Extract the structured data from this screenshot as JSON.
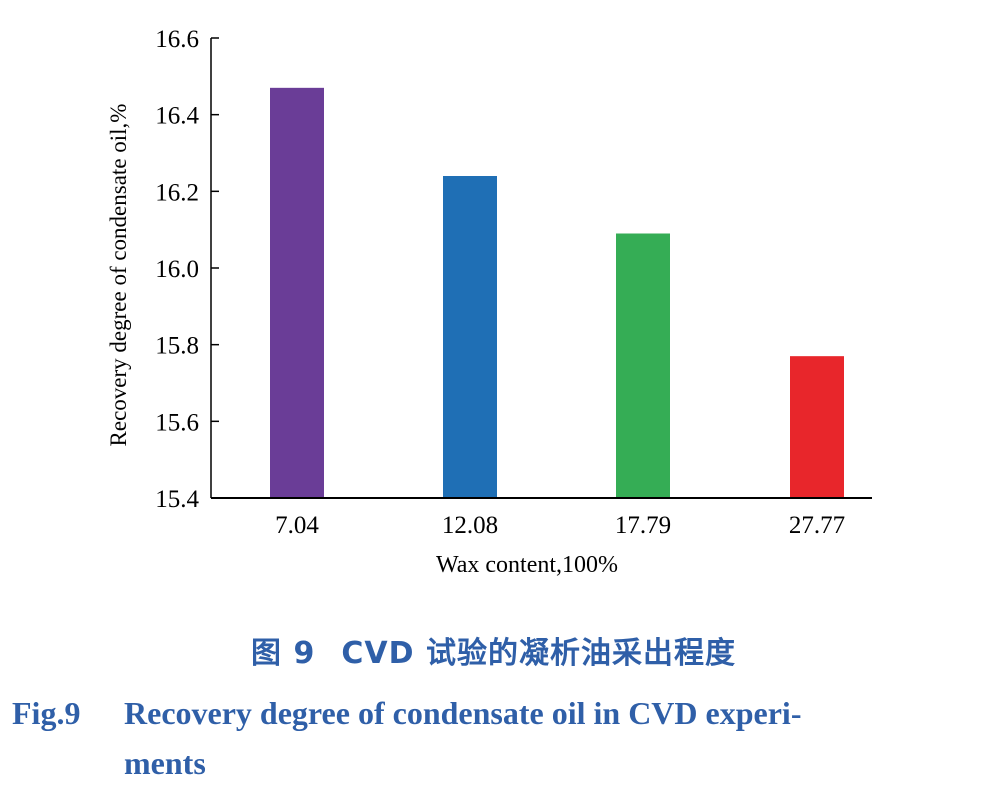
{
  "chart_data": {
    "type": "bar",
    "categories": [
      "7.04",
      "12.08",
      "17.79",
      "27.77"
    ],
    "values": [
      16.47,
      16.24,
      16.09,
      15.77
    ],
    "colors": [
      "#6a3d97",
      "#1f6fb5",
      "#35ad55",
      "#e8262b"
    ],
    "xlabel": "Wax content,100%",
    "ylabel": "Recovery degree of condensate oil,%",
    "ylim": [
      15.4,
      16.6
    ],
    "yticks": [
      "15.4",
      "15.6",
      "15.8",
      "16.0",
      "16.2",
      "16.4",
      "16.6"
    ],
    "grid": false
  },
  "caption": {
    "cn_number": "图 9",
    "cn_title": "CVD 试验的凝析油采出程度",
    "en_number": "Fig.9",
    "en_title_line1": "Recovery degree of condensate oil in CVD experi-",
    "en_title_line2": "ments"
  }
}
